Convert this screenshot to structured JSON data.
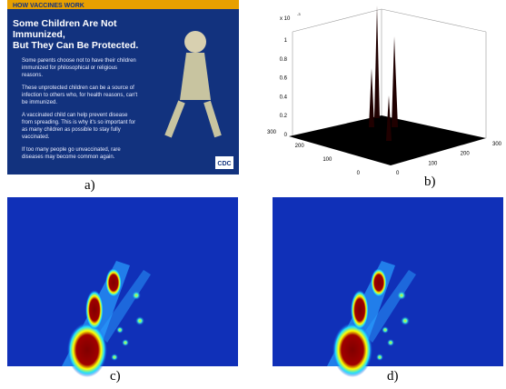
{
  "figure": {
    "panel_a": {
      "header": "HOW VACCINES WORK",
      "title_lines": [
        "Some Children Are Not Immunized,",
        "But They Can Be Protected."
      ],
      "bullets": [
        "Some parents choose not to have their children immunized for philosophical or religious reasons.",
        "These unprotected children can be a source of infection to others who, for health reasons, can't be immunized.",
        "A vaccinated child can help prevent disease from spreading. This is why it's so important for as many children as possible to stay fully vaccinated.",
        "If too many people go unvaccinated, rare diseases may become common again."
      ],
      "logo": "CDC",
      "label": "a)"
    },
    "panel_b": {
      "scale_base": "x 10",
      "scale_exponent": "-3",
      "z_ticks": [
        0,
        0.2,
        0.4,
        0.6,
        0.8,
        1
      ],
      "left_ticks": [
        0,
        100,
        200,
        300
      ],
      "right_ticks": [
        0,
        100,
        200,
        300
      ],
      "label": "b)"
    },
    "panel_c": {
      "label": "c)"
    },
    "panel_d": {
      "label": "d)"
    }
  }
}
